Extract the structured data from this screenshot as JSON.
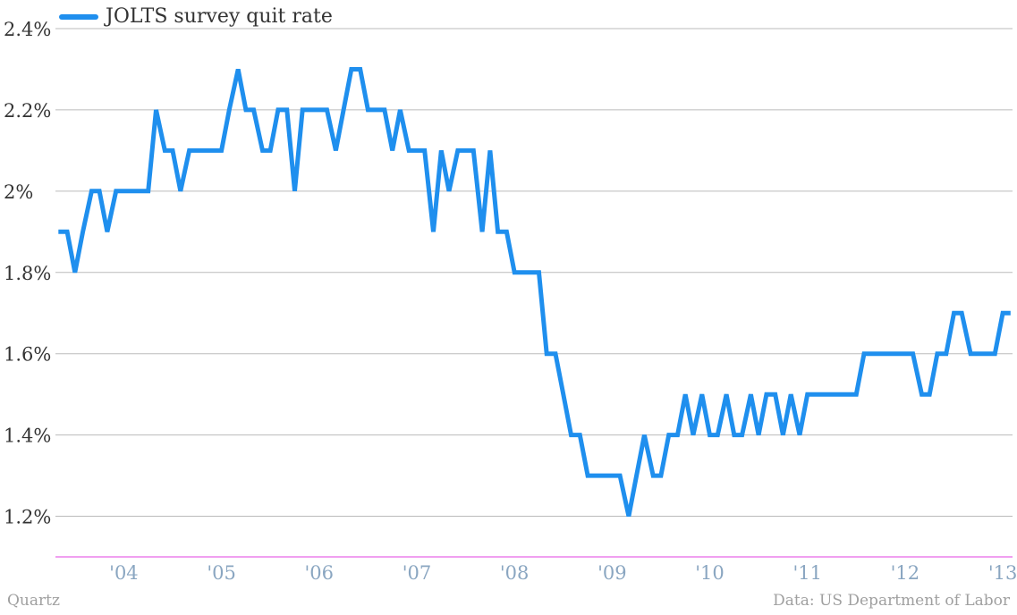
{
  "legend": {
    "label": "JOLTS survey quit rate",
    "color": "#1f8fee"
  },
  "footer": {
    "left": "Quartz",
    "right": "Data: US Department of Labor"
  },
  "colors": {
    "line": "#1f8fee",
    "grid": "#bbbbbb",
    "baseline": "#e040e0",
    "ytick": "#333333",
    "xtick": "#8aa6c1"
  },
  "chart_data": {
    "type": "line",
    "title": "",
    "xlabel": "",
    "ylabel": "",
    "ylim": [
      1.1,
      2.4
    ],
    "y_ticks": [
      1.2,
      1.4,
      1.6,
      1.8,
      2.0,
      2.2,
      2.4
    ],
    "y_tick_labels": [
      "1.2%",
      "1.4%",
      "1.6%",
      "1.8%",
      "2%",
      "2.2%",
      "2.4%"
    ],
    "x_ticks": [
      2004,
      2005,
      2006,
      2007,
      2008,
      2009,
      2010,
      2011,
      2012,
      2013
    ],
    "x_tick_labels": [
      "'04",
      "'05",
      "'06",
      "'07",
      "'08",
      "'09",
      "'10",
      "'11",
      "'12",
      "'13"
    ],
    "xlim": [
      2003.3,
      2013.1
    ],
    "grid": true,
    "legend_position": "top-left",
    "series": [
      {
        "name": "JOLTS survey quit rate",
        "x": [
          2003.33,
          2003.42,
          2003.5,
          2003.58,
          2003.67,
          2003.75,
          2003.83,
          2003.92,
          2004.0,
          2004.08,
          2004.17,
          2004.25,
          2004.33,
          2004.42,
          2004.5,
          2004.58,
          2004.67,
          2004.75,
          2004.83,
          2004.92,
          2005.0,
          2005.08,
          2005.17,
          2005.25,
          2005.33,
          2005.42,
          2005.5,
          2005.58,
          2005.67,
          2005.75,
          2005.83,
          2005.92,
          2006.0,
          2006.08,
          2006.17,
          2006.25,
          2006.33,
          2006.42,
          2006.5,
          2006.58,
          2006.67,
          2006.75,
          2006.83,
          2006.92,
          2007.0,
          2007.08,
          2007.17,
          2007.25,
          2007.33,
          2007.42,
          2007.5,
          2007.58,
          2007.67,
          2007.75,
          2007.83,
          2007.92,
          2008.0,
          2008.08,
          2008.17,
          2008.25,
          2008.33,
          2008.42,
          2008.5,
          2008.58,
          2008.67,
          2008.75,
          2008.83,
          2008.92,
          2009.0,
          2009.08,
          2009.17,
          2009.25,
          2009.33,
          2009.42,
          2009.5,
          2009.58,
          2009.67,
          2009.75,
          2009.83,
          2009.92,
          2010.0,
          2010.08,
          2010.17,
          2010.25,
          2010.33,
          2010.42,
          2010.5,
          2010.58,
          2010.67,
          2010.75,
          2010.83,
          2010.92,
          2011.0,
          2011.08,
          2011.17,
          2011.25,
          2011.33,
          2011.42,
          2011.5,
          2011.58,
          2011.67,
          2011.75,
          2011.83,
          2011.92,
          2012.0,
          2012.08,
          2012.17,
          2012.25,
          2012.33,
          2012.42,
          2012.5,
          2012.58,
          2012.67,
          2012.75,
          2012.83,
          2012.92,
          2013.0,
          2013.08
        ],
        "values": [
          1.9,
          1.9,
          1.8,
          1.9,
          2.0,
          2.0,
          1.9,
          2.0,
          2.0,
          2.0,
          2.0,
          2.0,
          2.2,
          2.1,
          2.1,
          2.0,
          2.1,
          2.1,
          2.1,
          2.1,
          2.1,
          2.2,
          2.3,
          2.2,
          2.2,
          2.1,
          2.1,
          2.2,
          2.2,
          2.0,
          2.2,
          2.2,
          2.2,
          2.2,
          2.1,
          2.2,
          2.3,
          2.3,
          2.2,
          2.2,
          2.2,
          2.1,
          2.2,
          2.1,
          2.1,
          2.1,
          1.9,
          2.1,
          2.0,
          2.1,
          2.1,
          2.1,
          1.9,
          2.1,
          1.9,
          1.9,
          1.8,
          1.8,
          1.8,
          1.8,
          1.6,
          1.6,
          1.5,
          1.4,
          1.4,
          1.3,
          1.3,
          1.3,
          1.3,
          1.3,
          1.2,
          1.3,
          1.4,
          1.3,
          1.3,
          1.4,
          1.4,
          1.5,
          1.4,
          1.5,
          1.4,
          1.4,
          1.5,
          1.4,
          1.4,
          1.5,
          1.4,
          1.5,
          1.5,
          1.4,
          1.5,
          1.4,
          1.5,
          1.5,
          1.5,
          1.5,
          1.5,
          1.5,
          1.5,
          1.6,
          1.6,
          1.6,
          1.6,
          1.6,
          1.6,
          1.6,
          1.5,
          1.5,
          1.6,
          1.6,
          1.7,
          1.7,
          1.6,
          1.6,
          1.6,
          1.6,
          1.7,
          1.7
        ]
      }
    ]
  }
}
